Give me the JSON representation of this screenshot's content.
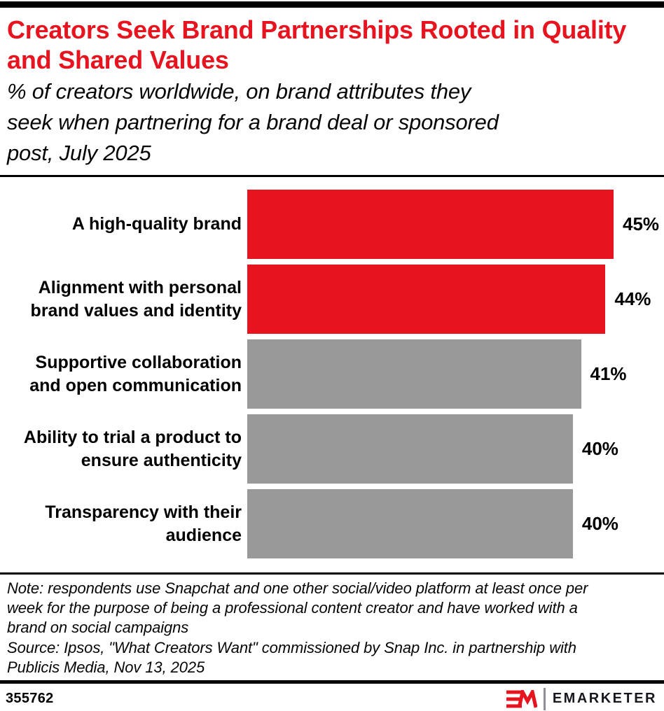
{
  "page": {
    "background": "#ffffff",
    "accent_red": "#E7131E",
    "bar_gray": "#999999",
    "text_black": "#000000"
  },
  "header": {
    "title": "Creators Seek Brand Partnerships Rooted in Quality and Shared Values",
    "subtitle": "% of creators worldwide, on brand attributes they\nseek when partnering for a brand deal or sponsored\npost, July 2025"
  },
  "chart_data": {
    "type": "bar",
    "orientation": "horizontal",
    "title": "Creators Seek Brand Partnerships Rooted in Quality and Shared Values",
    "subtitle": "% of creators worldwide, on brand attributes they seek when partnering for a brand deal or sponsored post, July 2025",
    "categories": [
      "A high-quality brand",
      "Alignment with personal\nbrand values and identity",
      "Supportive collaboration\nand open communication",
      "Ability to trial a product to\nensure authenticity",
      "Transparency with their\naudience"
    ],
    "values": [
      45,
      44,
      41,
      40,
      40
    ],
    "value_labels": [
      "45%",
      "44%",
      "41%",
      "40%",
      "40%"
    ],
    "bar_colors": [
      "#E7131E",
      "#E7131E",
      "#999999",
      "#999999",
      "#999999"
    ],
    "unit": "%",
    "xlim": [
      0,
      45
    ],
    "grid": false,
    "legend": null,
    "axis_ticks_visible": false,
    "data_labels_position": "outside-end"
  },
  "footnote": {
    "note": "Note: respondents use Snapchat and one other social/video platform at least once per\nweek for the purpose of being a professional content creator and have worked with a\nbrand on social campaigns",
    "source": "Source: Ipsos, \"What Creators Want\" commissioned by Snap Inc. in partnership with\nPublicis Media, Nov 13, 2025"
  },
  "footer": {
    "chart_id": "355762",
    "brand_wordmark": "EMARKETER"
  }
}
